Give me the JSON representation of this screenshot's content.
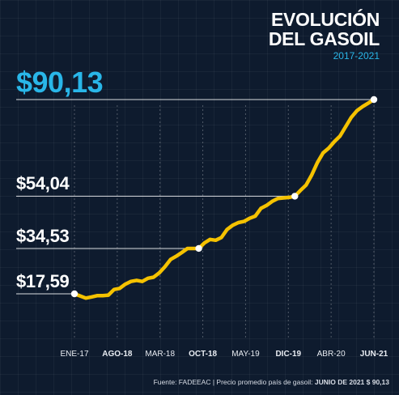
{
  "header": {
    "title": "EVOLUCIÓN\nDEL GASOIL",
    "subtitle": "2017-2021"
  },
  "footer": {
    "source": "Fuente: FADEEAC",
    "separator": " | ",
    "note": "Precio promedio país de gasoil: ",
    "highlight": "JUNIO DE 2021 $ 90,13"
  },
  "colors": {
    "background": "#0e1b2e",
    "line": "#f5c200",
    "accent": "#29b6e8",
    "text": "#ffffff"
  },
  "chart_data": {
    "type": "line",
    "title": "EVOLUCIÓN DEL GASOIL",
    "subtitle": "2017-2021",
    "xlabel": "",
    "ylabel": "",
    "x_tick_labels": [
      {
        "label": "ENE-17",
        "bold": false
      },
      {
        "label": "AGO-18",
        "bold": true
      },
      {
        "label": "MAR-18",
        "bold": false
      },
      {
        "label": "OCT-18",
        "bold": true
      },
      {
        "label": "MAY-19",
        "bold": false
      },
      {
        "label": "DIC-19",
        "bold": true
      },
      {
        "label": "ABR-20",
        "bold": false
      },
      {
        "label": "JUN-21",
        "bold": true
      }
    ],
    "x_index_range": [
      0,
      53
    ],
    "highlights": [
      {
        "label": "$17,59",
        "value": 17.59,
        "index": 0,
        "big": false
      },
      {
        "label": "$34,53",
        "value": 34.53,
        "index": 22,
        "big": false
      },
      {
        "label": "$54,04",
        "value": 54.04,
        "index": 39,
        "big": false
      },
      {
        "label": "$90,13",
        "value": 90.13,
        "index": 53,
        "big": true
      }
    ],
    "values": [
      17.59,
      16.8,
      16.0,
      16.4,
      16.9,
      16.9,
      17.1,
      19.2,
      19.6,
      21.2,
      22.2,
      22.6,
      22.2,
      23.4,
      23.8,
      25.4,
      27.7,
      30.4,
      31.6,
      33.0,
      34.53,
      34.53,
      34.53,
      36.6,
      37.9,
      37.6,
      38.6,
      41.6,
      43.2,
      44.2,
      44.6,
      45.8,
      46.6,
      49.5,
      50.6,
      52.1,
      53.2,
      53.4,
      53.6,
      54.04,
      56.2,
      58.2,
      62.0,
      66.6,
      70.2,
      72.0,
      74.4,
      76.5,
      80.0,
      83.5,
      86.0,
      87.5,
      88.8,
      90.13
    ]
  }
}
